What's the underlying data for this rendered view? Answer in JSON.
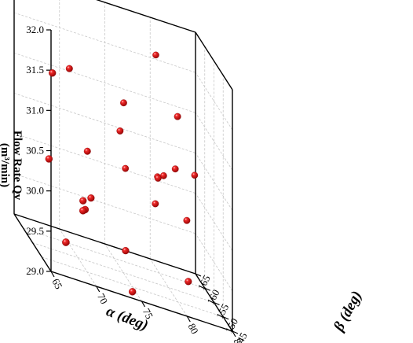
{
  "chart_data": {
    "type": "scatter3d",
    "title": "",
    "xlabel": "α (deg)",
    "ylabel": "β (deg)",
    "zlabel_line1": "Flow Rate Qv",
    "zlabel_line2": "(m³/min)",
    "xlim": [
      65,
      85
    ],
    "ylim": [
      145,
      165
    ],
    "zlim": [
      29.0,
      32.0
    ],
    "x_ticks": [
      "65",
      "70",
      "75",
      "80",
      "85"
    ],
    "y_ticks": [
      "145",
      "150",
      "155",
      "160",
      "165"
    ],
    "z_ticks": [
      "29.0",
      "29.5",
      "30.0",
      "30.5",
      "31.0",
      "31.5",
      "32.0"
    ],
    "grid": true,
    "marker_color": "#dd1111",
    "points": [
      {
        "x": 80.3,
        "y": 163.4,
        "z": 31.6
      },
      {
        "x": 80.7,
        "y": 153.6,
        "z": 31.2
      },
      {
        "x": 70.6,
        "y": 162.6,
        "z": 31.1
      },
      {
        "x": 76.2,
        "y": 160.7,
        "z": 30.95
      },
      {
        "x": 75.7,
        "y": 160.2,
        "z": 30.6
      },
      {
        "x": 67.1,
        "y": 154.6,
        "z": 31.2
      },
      {
        "x": 81.1,
        "y": 156.8,
        "z": 30.45
      },
      {
        "x": 79.3,
        "y": 157.3,
        "z": 30.25
      },
      {
        "x": 80.3,
        "y": 159.2,
        "z": 30.25
      },
      {
        "x": 83.6,
        "y": 158.6,
        "z": 30.4
      },
      {
        "x": 72.2,
        "y": 160.7,
        "z": 30.2
      },
      {
        "x": 76.7,
        "y": 162.2,
        "z": 30.1
      },
      {
        "x": 66.5,
        "y": 153.5,
        "z": 30.15
      },
      {
        "x": 80.8,
        "y": 165.0,
        "z": 30.05
      },
      {
        "x": 78.8,
        "y": 156.3,
        "z": 29.95
      },
      {
        "x": 81.7,
        "y": 153.5,
        "z": 29.95
      },
      {
        "x": 71.4,
        "y": 154.8,
        "z": 29.8
      },
      {
        "x": 70.4,
        "y": 154.2,
        "z": 29.75
      },
      {
        "x": 69.5,
        "y": 149.8,
        "z": 29.75
      },
      {
        "x": 69.9,
        "y": 150.6,
        "z": 29.75
      },
      {
        "x": 74.4,
        "y": 150.8,
        "z": 29.4
      },
      {
        "x": 80.4,
        "y": 146.3,
        "z": 29.4
      },
      {
        "x": 66.8,
        "y": 145.8,
        "z": 29.4
      },
      {
        "x": 74.2,
        "y": 146.1,
        "z": 29.05
      }
    ]
  }
}
